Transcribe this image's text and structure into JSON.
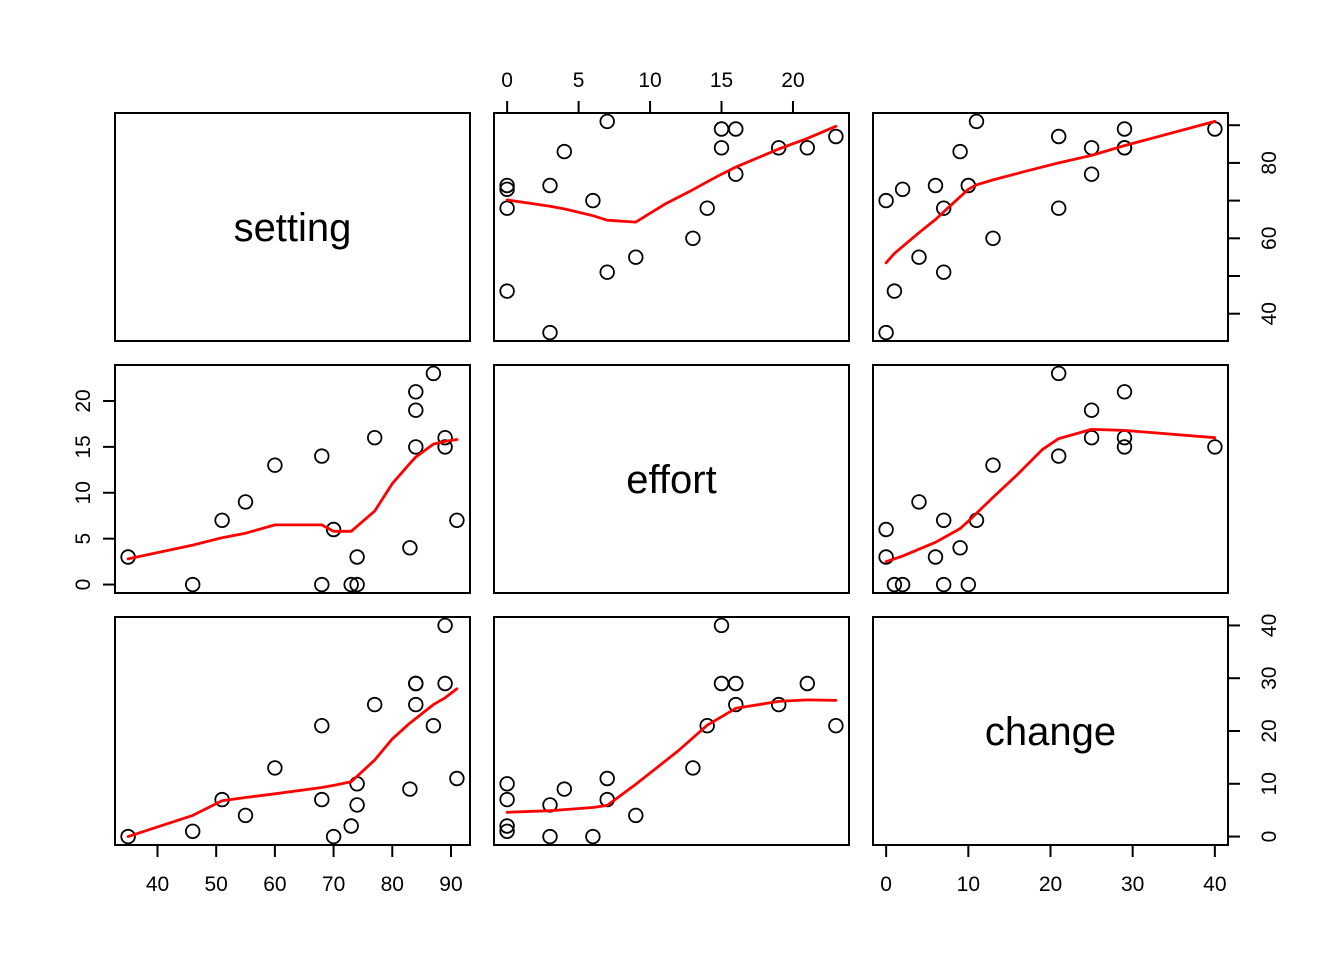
{
  "chart_data": {
    "type": "scatter",
    "subtype": "pairs-scatterplot-matrix",
    "title": "",
    "background": "#ffffff",
    "point_color": "#000000",
    "smooth_line_color": "#ff0000",
    "grid": false,
    "n_points": 20,
    "variables": [
      {
        "name": "setting",
        "range": [
          32.76,
          93.24
        ],
        "ticks": [
          40,
          50,
          60,
          70,
          80,
          90
        ]
      },
      {
        "name": "effort",
        "range": [
          -0.92,
          23.92
        ],
        "ticks": [
          0,
          5,
          10,
          15,
          20
        ]
      },
      {
        "name": "change",
        "range": [
          -1.6,
          41.6
        ],
        "ticks": [
          0,
          10,
          20,
          30,
          40
        ]
      }
    ],
    "observations": {
      "setting": [
        46,
        74,
        89,
        77,
        84,
        89,
        68,
        70,
        60,
        55,
        35,
        51,
        87,
        83,
        68,
        84,
        74,
        73,
        84,
        91
      ],
      "effort": [
        0,
        0,
        16,
        16,
        21,
        15,
        14,
        6,
        13,
        9,
        3,
        7,
        23,
        4,
        0,
        19,
        3,
        0,
        15,
        7
      ],
      "change": [
        1,
        10,
        29,
        25,
        29,
        40,
        21,
        0,
        13,
        4,
        0,
        7,
        21,
        9,
        7,
        25,
        6,
        2,
        29,
        11
      ]
    },
    "smooths": {
      "r0c1": [
        [
          0,
          70.2
        ],
        [
          3,
          68.5
        ],
        [
          4,
          67.8
        ],
        [
          6,
          66
        ],
        [
          7,
          64.8
        ],
        [
          9,
          64.3
        ],
        [
          11,
          69
        ],
        [
          13,
          72.9
        ],
        [
          14,
          75
        ],
        [
          15,
          77
        ],
        [
          16,
          78.9
        ],
        [
          19,
          83.7
        ],
        [
          21,
          86.5
        ],
        [
          23,
          89.7
        ]
      ],
      "r0c2": [
        [
          0,
          53.5
        ],
        [
          1,
          56
        ],
        [
          4,
          61.5
        ],
        [
          6,
          65
        ],
        [
          7,
          67
        ],
        [
          9,
          71
        ],
        [
          10,
          73
        ],
        [
          11,
          74.2
        ],
        [
          13,
          75.5
        ],
        [
          17,
          77.8
        ],
        [
          21,
          80
        ],
        [
          25,
          82
        ],
        [
          29,
          84.6
        ],
        [
          40,
          91
        ]
      ],
      "r1c0": [
        [
          35,
          2.8
        ],
        [
          46,
          4.3
        ],
        [
          51,
          5.1
        ],
        [
          55,
          5.6
        ],
        [
          60,
          6.5
        ],
        [
          68,
          6.5
        ],
        [
          70,
          5.8
        ],
        [
          73,
          5.8
        ],
        [
          77,
          8
        ],
        [
          80,
          11
        ],
        [
          83,
          13.2
        ],
        [
          84,
          13.9
        ],
        [
          87,
          15.3
        ],
        [
          89,
          15.6
        ],
        [
          91,
          15.8
        ]
      ],
      "r1c2": [
        [
          0,
          2.5
        ],
        [
          2,
          3.1
        ],
        [
          6,
          4.6
        ],
        [
          9,
          6.1
        ],
        [
          10,
          6.9
        ],
        [
          13,
          9.5
        ],
        [
          16,
          12
        ],
        [
          19,
          14.7
        ],
        [
          21,
          15.9
        ],
        [
          25,
          16.9
        ],
        [
          29,
          16.8
        ],
        [
          40,
          16
        ]
      ],
      "r2c0": [
        [
          35,
          0
        ],
        [
          46,
          4
        ],
        [
          51,
          6.8
        ],
        [
          55,
          7.4
        ],
        [
          60,
          8.1
        ],
        [
          68,
          9.3
        ],
        [
          70,
          9.7
        ],
        [
          73,
          10.4
        ],
        [
          77,
          14.5
        ],
        [
          80,
          18.5
        ],
        [
          83,
          21.5
        ],
        [
          87,
          25
        ],
        [
          89,
          26.3
        ],
        [
          91,
          28
        ]
      ],
      "r2c1": [
        [
          0,
          4.6
        ],
        [
          3,
          4.9
        ],
        [
          4,
          5.1
        ],
        [
          6,
          5.5
        ],
        [
          7,
          5.9
        ],
        [
          9,
          9.9
        ],
        [
          12,
          16.3
        ],
        [
          14,
          21.1
        ],
        [
          15,
          22.7
        ],
        [
          16,
          24.3
        ],
        [
          19,
          25.6
        ],
        [
          21,
          25.9
        ],
        [
          23,
          25.8
        ]
      ]
    },
    "axes": [
      {
        "side": "top",
        "row": 0,
        "col": 1,
        "var": 1,
        "labeled": [
          0,
          5,
          10,
          15,
          20
        ]
      },
      {
        "side": "right",
        "row": 0,
        "col": 2,
        "var": 0,
        "labeled": [
          40,
          60,
          80
        ]
      },
      {
        "side": "left",
        "row": 1,
        "col": 0,
        "var": 1,
        "labeled": [
          0,
          5,
          10,
          15,
          20
        ]
      },
      {
        "side": "right",
        "row": 2,
        "col": 2,
        "var": 2,
        "labeled": [
          0,
          10,
          20,
          30,
          40
        ]
      },
      {
        "side": "bottom",
        "row": 2,
        "col": 0,
        "var": 0,
        "labeled": [
          40,
          50,
          60,
          70,
          80,
          90
        ]
      },
      {
        "side": "bottom",
        "row": 2,
        "col": 2,
        "var": 2,
        "labeled": [
          0,
          10,
          20,
          30,
          40
        ]
      }
    ]
  }
}
